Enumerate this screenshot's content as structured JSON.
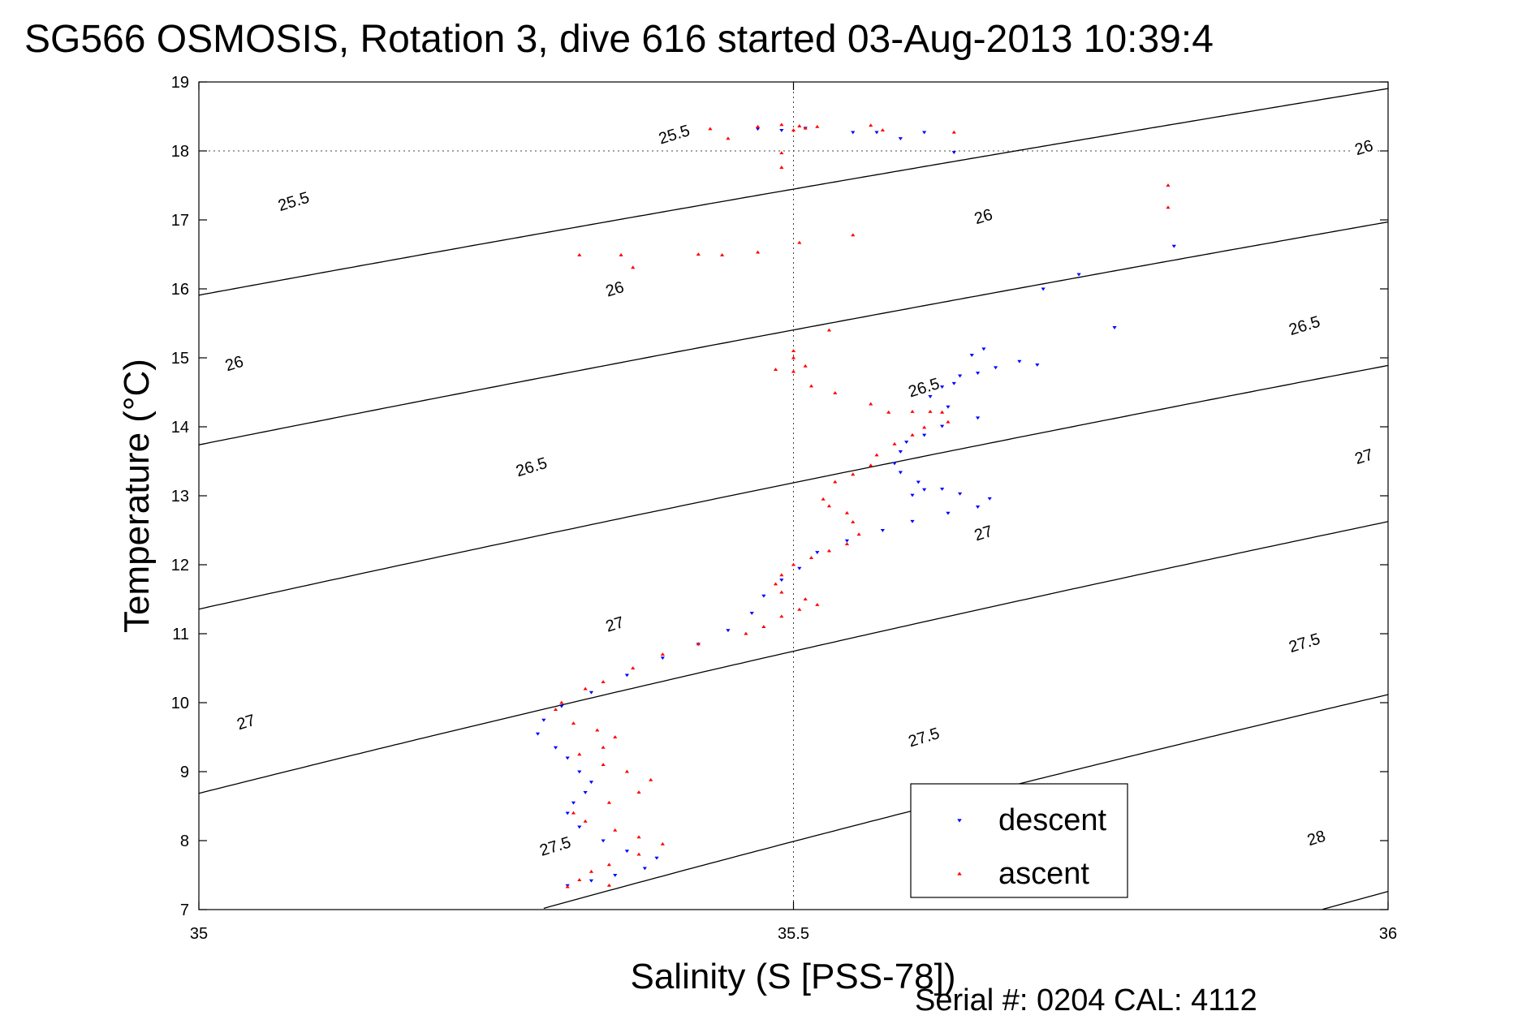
{
  "title": "SG566 OSMOSIS, Rotation 3, dive 616 started 03-Aug-2013 10:39:4",
  "footer": "Serial #: 0204  CAL: 4112",
  "colors": {
    "descent": "#0000ff",
    "ascent": "#ff0000",
    "contour": "#000000"
  },
  "chart_data": {
    "type": "scatter",
    "xlabel": "Salinity (S [PSS-78])",
    "ylabel": "Temperature (°C)",
    "xlim": [
      35,
      36
    ],
    "ylim": [
      7,
      19
    ],
    "xticks": [
      35,
      35.5,
      36
    ],
    "xtick_labels": [
      "35",
      "35.5",
      "36"
    ],
    "yticks": [
      7,
      8,
      9,
      10,
      11,
      12,
      13,
      14,
      15,
      16,
      17,
      18,
      19
    ],
    "ytick_labels": [
      "7",
      "8",
      "9",
      "10",
      "11",
      "12",
      "13",
      "14",
      "15",
      "16",
      "17",
      "18",
      "19"
    ],
    "grid": "dotted lines at 35.5 and 18",
    "legend_position": "lower-right",
    "series": [
      {
        "name": "descent",
        "marker": "downward triangle",
        "color": "#0000ff",
        "points": [
          [
            35.47,
            18.32
          ],
          [
            35.49,
            18.3
          ],
          [
            35.51,
            18.33
          ],
          [
            35.55,
            18.27
          ],
          [
            35.57,
            18.27
          ],
          [
            35.59,
            18.18
          ],
          [
            35.61,
            18.27
          ],
          [
            35.635,
            17.98
          ],
          [
            35.82,
            16.62
          ],
          [
            35.74,
            16.21
          ],
          [
            35.71,
            16.0
          ],
          [
            35.77,
            15.44
          ],
          [
            35.66,
            15.13
          ],
          [
            35.65,
            15.04
          ],
          [
            35.69,
            14.95
          ],
          [
            35.705,
            14.9
          ],
          [
            35.67,
            14.86
          ],
          [
            35.655,
            14.78
          ],
          [
            35.64,
            14.74
          ],
          [
            35.635,
            14.63
          ],
          [
            35.625,
            14.58
          ],
          [
            35.615,
            14.44
          ],
          [
            35.63,
            14.29
          ],
          [
            35.655,
            14.13
          ],
          [
            35.625,
            14.01
          ],
          [
            35.61,
            13.88
          ],
          [
            35.595,
            13.78
          ],
          [
            35.59,
            13.64
          ],
          [
            35.585,
            13.47
          ],
          [
            35.59,
            13.34
          ],
          [
            35.605,
            13.2
          ],
          [
            35.6,
            13.01
          ],
          [
            35.61,
            13.09
          ],
          [
            35.625,
            13.1
          ],
          [
            35.64,
            13.03
          ],
          [
            35.665,
            12.96
          ],
          [
            35.655,
            12.84
          ],
          [
            35.63,
            12.75
          ],
          [
            35.6,
            12.63
          ],
          [
            35.575,
            12.5
          ],
          [
            35.545,
            12.35
          ],
          [
            35.52,
            12.18
          ],
          [
            35.505,
            11.95
          ],
          [
            35.49,
            11.78
          ],
          [
            35.475,
            11.55
          ],
          [
            35.465,
            11.3
          ],
          [
            35.445,
            11.05
          ],
          [
            35.42,
            10.85
          ],
          [
            35.39,
            10.65
          ],
          [
            35.36,
            10.4
          ],
          [
            35.33,
            10.15
          ],
          [
            35.305,
            9.95
          ],
          [
            35.29,
            9.75
          ],
          [
            35.285,
            9.55
          ],
          [
            35.3,
            9.35
          ],
          [
            35.31,
            9.2
          ],
          [
            35.32,
            9.0
          ],
          [
            35.33,
            8.85
          ],
          [
            35.325,
            8.7
          ],
          [
            35.315,
            8.55
          ],
          [
            35.31,
            8.4
          ],
          [
            35.32,
            8.2
          ],
          [
            35.34,
            8.0
          ],
          [
            35.36,
            7.85
          ],
          [
            35.385,
            7.75
          ],
          [
            35.375,
            7.6
          ],
          [
            35.35,
            7.5
          ],
          [
            35.33,
            7.42
          ],
          [
            35.31,
            7.35
          ]
        ]
      },
      {
        "name": "ascent",
        "marker": "upward triangle",
        "color": "#ff0000",
        "points": [
          [
            35.43,
            18.32
          ],
          [
            35.47,
            18.35
          ],
          [
            35.49,
            18.38
          ],
          [
            35.5,
            18.3
          ],
          [
            35.505,
            18.36
          ],
          [
            35.51,
            18.33
          ],
          [
            35.52,
            18.35
          ],
          [
            35.445,
            18.18
          ],
          [
            35.565,
            18.37
          ],
          [
            35.575,
            18.3
          ],
          [
            35.635,
            18.27
          ],
          [
            35.49,
            17.97
          ],
          [
            35.49,
            17.76
          ],
          [
            35.815,
            17.5
          ],
          [
            35.815,
            17.18
          ],
          [
            35.32,
            16.49
          ],
          [
            35.355,
            16.49
          ],
          [
            35.365,
            16.31
          ],
          [
            35.42,
            16.5
          ],
          [
            35.44,
            16.49
          ],
          [
            35.47,
            16.53
          ],
          [
            35.505,
            16.67
          ],
          [
            35.55,
            16.78
          ],
          [
            35.53,
            15.4
          ],
          [
            35.5,
            15.1
          ],
          [
            35.5,
            15.0
          ],
          [
            35.485,
            14.83
          ],
          [
            35.5,
            14.8
          ],
          [
            35.51,
            14.88
          ],
          [
            35.515,
            14.59
          ],
          [
            35.535,
            14.49
          ],
          [
            35.565,
            14.33
          ],
          [
            35.58,
            14.21
          ],
          [
            35.6,
            14.22
          ],
          [
            35.615,
            14.22
          ],
          [
            35.625,
            14.21
          ],
          [
            35.63,
            14.07
          ],
          [
            35.61,
            13.99
          ],
          [
            35.6,
            13.88
          ],
          [
            35.585,
            13.75
          ],
          [
            35.57,
            13.59
          ],
          [
            35.565,
            13.44
          ],
          [
            35.55,
            13.31
          ],
          [
            35.535,
            13.2
          ],
          [
            35.525,
            12.95
          ],
          [
            35.53,
            12.85
          ],
          [
            35.545,
            12.75
          ],
          [
            35.55,
            12.62
          ],
          [
            35.555,
            12.44
          ],
          [
            35.545,
            12.3
          ],
          [
            35.53,
            12.2
          ],
          [
            35.515,
            12.1
          ],
          [
            35.5,
            12.0
          ],
          [
            35.49,
            11.85
          ],
          [
            35.485,
            11.72
          ],
          [
            35.49,
            11.6
          ],
          [
            35.51,
            11.5
          ],
          [
            35.52,
            11.42
          ],
          [
            35.505,
            11.35
          ],
          [
            35.49,
            11.25
          ],
          [
            35.475,
            11.1
          ],
          [
            35.46,
            11.0
          ],
          [
            35.42,
            10.85
          ],
          [
            35.39,
            10.7
          ],
          [
            35.365,
            10.5
          ],
          [
            35.34,
            10.3
          ],
          [
            35.325,
            10.2
          ],
          [
            35.305,
            10.0
          ],
          [
            35.3,
            9.9
          ],
          [
            35.315,
            9.7
          ],
          [
            35.335,
            9.6
          ],
          [
            35.35,
            9.5
          ],
          [
            35.34,
            9.35
          ],
          [
            35.32,
            9.25
          ],
          [
            35.34,
            9.1
          ],
          [
            35.36,
            9.0
          ],
          [
            35.38,
            8.88
          ],
          [
            35.37,
            8.7
          ],
          [
            35.345,
            8.55
          ],
          [
            35.315,
            8.4
          ],
          [
            35.325,
            8.28
          ],
          [
            35.35,
            8.15
          ],
          [
            35.37,
            8.05
          ],
          [
            35.39,
            7.95
          ],
          [
            35.37,
            7.8
          ],
          [
            35.345,
            7.65
          ],
          [
            35.33,
            7.55
          ],
          [
            35.32,
            7.43
          ],
          [
            35.31,
            7.33
          ],
          [
            35.345,
            7.35
          ]
        ]
      }
    ],
    "isopycnals": [
      {
        "sigma": 25.5,
        "label": "25.5"
      },
      {
        "sigma": 26,
        "label": "26"
      },
      {
        "sigma": 26.5,
        "label": "26.5"
      },
      {
        "sigma": 27,
        "label": "27"
      },
      {
        "sigma": 27.5,
        "label": "27.5"
      },
      {
        "sigma": 28,
        "label": "28"
      }
    ],
    "contour_labels": [
      {
        "text": "25.5",
        "x": 35.08,
        "y": 17.25
      },
      {
        "text": "25.5",
        "x": 35.4,
        "y": 18.22
      },
      {
        "text": "26",
        "x": 35.03,
        "y": 14.9
      },
      {
        "text": "26",
        "x": 35.35,
        "y": 15.98
      },
      {
        "text": "26",
        "x": 35.66,
        "y": 17.03
      },
      {
        "text": "26",
        "x": 35.98,
        "y": 18.03
      },
      {
        "text": "26.5",
        "x": 35.28,
        "y": 13.4
      },
      {
        "text": "26.5",
        "x": 35.61,
        "y": 14.55
      },
      {
        "text": "26.5",
        "x": 35.93,
        "y": 15.45
      },
      {
        "text": "27",
        "x": 35.04,
        "y": 9.7
      },
      {
        "text": "27",
        "x": 35.35,
        "y": 11.12
      },
      {
        "text": "27",
        "x": 35.66,
        "y": 12.44
      },
      {
        "text": "27",
        "x": 35.98,
        "y": 13.55
      },
      {
        "text": "27.5",
        "x": 35.3,
        "y": 7.9
      },
      {
        "text": "27.5",
        "x": 35.61,
        "y": 9.48
      },
      {
        "text": "27.5",
        "x": 35.93,
        "y": 10.85
      },
      {
        "text": "28",
        "x": 35.94,
        "y": 8.02
      }
    ],
    "legend": [
      {
        "label": "descent",
        "color": "#0000ff",
        "marker": "down"
      },
      {
        "label": "ascent",
        "color": "#ff0000",
        "marker": "up"
      }
    ]
  }
}
